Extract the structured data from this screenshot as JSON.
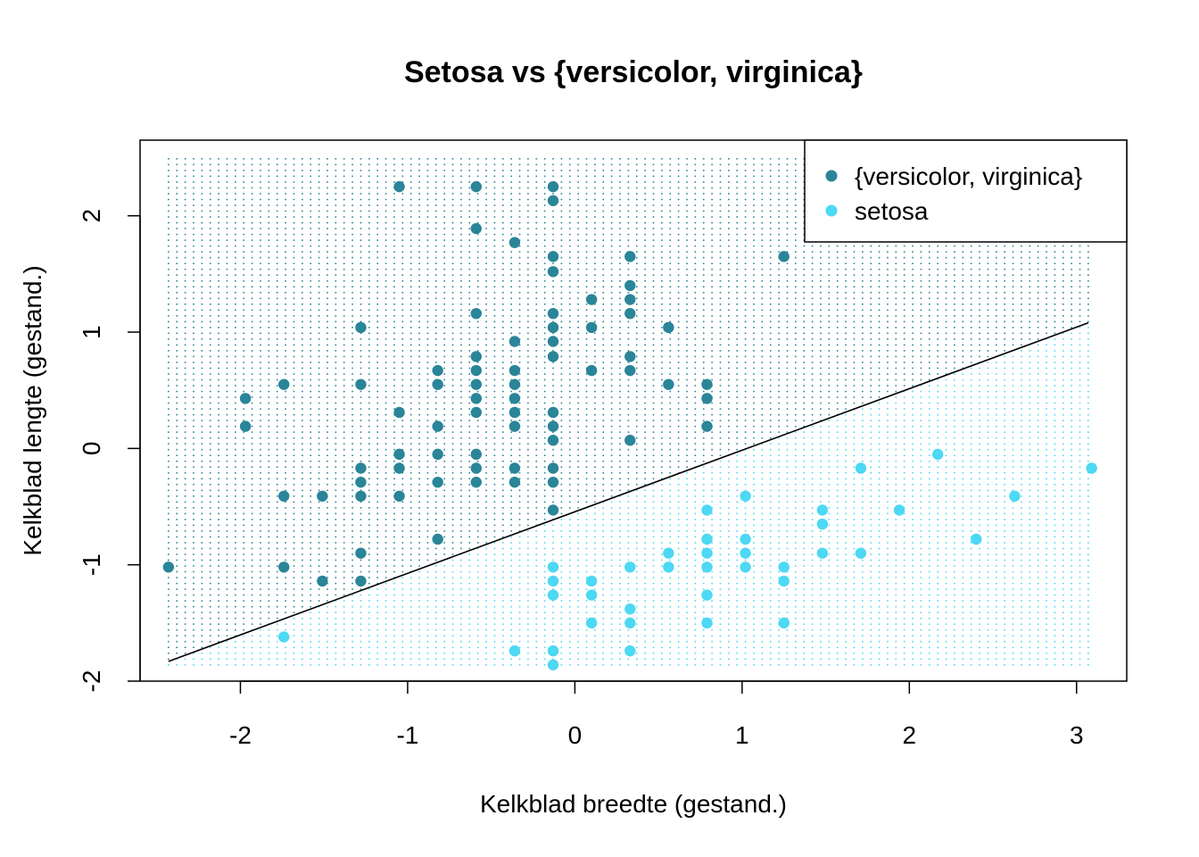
{
  "chart_data": {
    "type": "scatter",
    "title": "Setosa vs {versicolor, virginica}",
    "xlabel": "Kelkblad breedte (gestand.)",
    "ylabel": "Kelkblad lengte (gestand.)",
    "xlim": [
      -2.6,
      3.3
    ],
    "ylim": [
      -2.0,
      2.65
    ],
    "x_ticks": [
      -2,
      -1,
      0,
      1,
      2,
      3
    ],
    "y_ticks": [
      -2,
      -1,
      0,
      1,
      2
    ],
    "x_tick_labels": [
      "-2",
      "-1",
      "0",
      "1",
      "2",
      "3"
    ],
    "y_tick_labels": [
      "-2",
      "-1",
      "0",
      "1",
      "2"
    ],
    "legend_position": "top-right",
    "grid": {
      "shown": true,
      "x_range": [
        -2.43,
        3.07
      ],
      "y_range": [
        -1.86,
        2.49
      ],
      "step": 0.05
    },
    "decision_boundary": {
      "x": [
        -2.43,
        3.07
      ],
      "y": [
        -1.83,
        1.08
      ],
      "color": "#000000"
    },
    "colors": {
      "versicolor_virginica": "#2A8598",
      "setosa": "#4DD8F4"
    },
    "series": [
      {
        "name": "{versicolor, virginica}",
        "color": "#2A8598",
        "points": [
          [
            -2.43,
            -1.02
          ],
          [
            -1.97,
            0.43
          ],
          [
            -1.97,
            0.19
          ],
          [
            -1.74,
            0.55
          ],
          [
            -1.74,
            -0.41
          ],
          [
            -1.74,
            -1.02
          ],
          [
            -1.51,
            -0.41
          ],
          [
            -1.51,
            -1.14
          ],
          [
            -1.28,
            1.04
          ],
          [
            -1.28,
            0.55
          ],
          [
            -1.28,
            -0.17
          ],
          [
            -1.28,
            -0.29
          ],
          [
            -1.28,
            -0.41
          ],
          [
            -1.28,
            -0.9
          ],
          [
            -1.28,
            -1.14
          ],
          [
            -1.05,
            2.25
          ],
          [
            -1.05,
            0.31
          ],
          [
            -1.05,
            -0.05
          ],
          [
            -1.05,
            -0.17
          ],
          [
            -1.05,
            -0.41
          ],
          [
            -0.82,
            0.67
          ],
          [
            -0.82,
            0.55
          ],
          [
            -0.82,
            0.19
          ],
          [
            -0.82,
            -0.05
          ],
          [
            -0.82,
            -0.29
          ],
          [
            -0.82,
            -0.78
          ],
          [
            -0.59,
            2.25
          ],
          [
            -0.59,
            1.89
          ],
          [
            -0.59,
            1.16
          ],
          [
            -0.59,
            0.79
          ],
          [
            -0.59,
            0.67
          ],
          [
            -0.59,
            0.55
          ],
          [
            -0.59,
            0.43
          ],
          [
            -0.59,
            0.31
          ],
          [
            -0.59,
            -0.05
          ],
          [
            -0.59,
            -0.17
          ],
          [
            -0.59,
            -0.29
          ],
          [
            -0.36,
            1.77
          ],
          [
            -0.36,
            0.92
          ],
          [
            -0.36,
            0.67
          ],
          [
            -0.36,
            0.55
          ],
          [
            -0.36,
            0.43
          ],
          [
            -0.36,
            0.31
          ],
          [
            -0.36,
            0.19
          ],
          [
            -0.36,
            -0.17
          ],
          [
            -0.36,
            -0.29
          ],
          [
            -0.13,
            2.25
          ],
          [
            -0.13,
            2.13
          ],
          [
            -0.13,
            1.65
          ],
          [
            -0.13,
            1.52
          ],
          [
            -0.13,
            1.16
          ],
          [
            -0.13,
            1.04
          ],
          [
            -0.13,
            0.92
          ],
          [
            -0.13,
            0.79
          ],
          [
            -0.13,
            0.31
          ],
          [
            -0.13,
            0.19
          ],
          [
            -0.13,
            0.07
          ],
          [
            -0.13,
            -0.17
          ],
          [
            -0.13,
            -0.29
          ],
          [
            -0.13,
            -0.53
          ],
          [
            0.1,
            1.28
          ],
          [
            0.1,
            1.04
          ],
          [
            0.1,
            0.67
          ],
          [
            0.33,
            1.65
          ],
          [
            0.33,
            1.4
          ],
          [
            0.33,
            1.28
          ],
          [
            0.33,
            1.16
          ],
          [
            0.33,
            0.79
          ],
          [
            0.33,
            0.67
          ],
          [
            0.33,
            0.07
          ],
          [
            0.56,
            1.04
          ],
          [
            0.56,
            0.55
          ],
          [
            0.79,
            0.55
          ],
          [
            0.79,
            0.43
          ],
          [
            0.79,
            0.19
          ],
          [
            1.25,
            1.65
          ]
        ]
      },
      {
        "name": "setosa",
        "color": "#4DD8F4",
        "points": [
          [
            -1.74,
            -1.62
          ],
          [
            -0.36,
            -1.74
          ],
          [
            -0.13,
            -1.02
          ],
          [
            -0.13,
            -1.14
          ],
          [
            -0.13,
            -1.26
          ],
          [
            -0.13,
            -1.74
          ],
          [
            -0.13,
            -1.86
          ],
          [
            0.1,
            -1.14
          ],
          [
            0.1,
            -1.26
          ],
          [
            0.1,
            -1.5
          ],
          [
            0.33,
            -1.02
          ],
          [
            0.33,
            -1.38
          ],
          [
            0.33,
            -1.5
          ],
          [
            0.33,
            -1.74
          ],
          [
            0.56,
            -0.9
          ],
          [
            0.56,
            -1.02
          ],
          [
            0.79,
            -0.53
          ],
          [
            0.79,
            -0.78
          ],
          [
            0.79,
            -0.9
          ],
          [
            0.79,
            -1.02
          ],
          [
            0.79,
            -1.26
          ],
          [
            0.79,
            -1.5
          ],
          [
            1.02,
            -0.41
          ],
          [
            1.02,
            -0.78
          ],
          [
            1.02,
            -0.9
          ],
          [
            1.02,
            -1.02
          ],
          [
            1.25,
            -1.02
          ],
          [
            1.25,
            -1.14
          ],
          [
            1.25,
            -1.5
          ],
          [
            1.48,
            -0.53
          ],
          [
            1.48,
            -0.65
          ],
          [
            1.48,
            -0.9
          ],
          [
            1.71,
            -0.17
          ],
          [
            1.71,
            -0.9
          ],
          [
            1.94,
            -0.53
          ],
          [
            2.17,
            -0.05
          ],
          [
            2.4,
            -0.78
          ],
          [
            2.63,
            -0.41
          ],
          [
            3.09,
            -0.17
          ]
        ]
      }
    ]
  }
}
